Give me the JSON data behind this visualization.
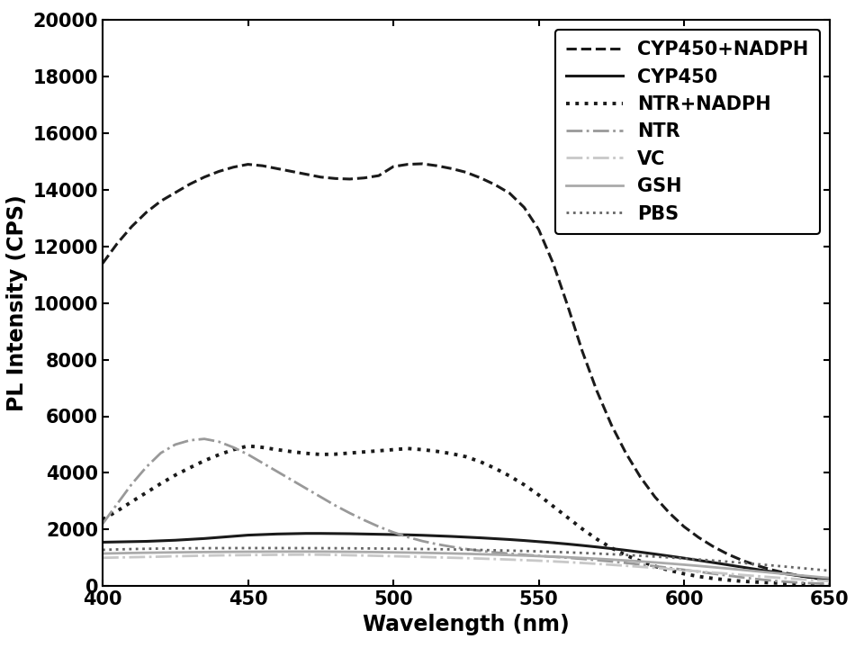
{
  "title": "",
  "xlabel": "Wavelength (nm)",
  "ylabel": "PL Intensity (CPS)",
  "xlim": [
    400,
    650
  ],
  "ylim": [
    0,
    20000
  ],
  "yticks": [
    0,
    2000,
    4000,
    6000,
    8000,
    10000,
    12000,
    14000,
    16000,
    18000,
    20000
  ],
  "xticks": [
    400,
    450,
    500,
    550,
    600,
    650
  ],
  "background_color": "#ffffff",
  "series": {
    "CYP450+NADPH": {
      "color": "#1a1a1a",
      "linestyle": "--",
      "linewidth": 2.2,
      "x": [
        400,
        405,
        410,
        415,
        420,
        425,
        430,
        435,
        440,
        445,
        450,
        455,
        460,
        465,
        470,
        475,
        480,
        485,
        490,
        495,
        500,
        505,
        510,
        515,
        520,
        525,
        530,
        535,
        540,
        545,
        550,
        555,
        560,
        565,
        570,
        575,
        580,
        585,
        590,
        595,
        600,
        605,
        610,
        615,
        620,
        625,
        630,
        635,
        640,
        645,
        650
      ],
      "y": [
        11400,
        12100,
        12700,
        13200,
        13600,
        13900,
        14200,
        14450,
        14650,
        14800,
        14900,
        14850,
        14750,
        14650,
        14550,
        14450,
        14400,
        14380,
        14420,
        14500,
        14820,
        14900,
        14920,
        14850,
        14750,
        14620,
        14420,
        14180,
        13880,
        13380,
        12600,
        11400,
        9900,
        8300,
        6900,
        5700,
        4700,
        3850,
        3150,
        2580,
        2100,
        1720,
        1400,
        1130,
        910,
        730,
        580,
        460,
        360,
        280,
        210
      ]
    },
    "CYP450": {
      "color": "#1a1a1a",
      "linestyle": "-",
      "linewidth": 2.2,
      "x": [
        400,
        405,
        410,
        415,
        420,
        425,
        430,
        435,
        440,
        445,
        450,
        455,
        460,
        465,
        470,
        475,
        480,
        485,
        490,
        495,
        500,
        505,
        510,
        515,
        520,
        525,
        530,
        535,
        540,
        545,
        550,
        555,
        560,
        565,
        570,
        575,
        580,
        585,
        590,
        595,
        600,
        605,
        610,
        615,
        620,
        625,
        630,
        635,
        640,
        645,
        650
      ],
      "y": [
        1550,
        1560,
        1570,
        1580,
        1600,
        1620,
        1650,
        1680,
        1720,
        1760,
        1800,
        1820,
        1840,
        1850,
        1860,
        1860,
        1855,
        1850,
        1840,
        1830,
        1820,
        1810,
        1795,
        1775,
        1755,
        1730,
        1705,
        1675,
        1645,
        1610,
        1570,
        1530,
        1485,
        1435,
        1382,
        1325,
        1265,
        1200,
        1132,
        1060,
        987,
        910,
        832,
        752,
        670,
        590,
        510,
        432,
        358,
        290,
        228
      ]
    },
    "NTR+NADPH": {
      "color": "#1a1a1a",
      "linestyle": ":",
      "linewidth": 2.8,
      "x": [
        400,
        405,
        410,
        415,
        420,
        425,
        430,
        435,
        440,
        445,
        450,
        455,
        460,
        465,
        470,
        475,
        480,
        485,
        490,
        495,
        500,
        505,
        510,
        515,
        520,
        525,
        530,
        535,
        540,
        545,
        550,
        555,
        560,
        565,
        570,
        575,
        580,
        585,
        590,
        595,
        600,
        605,
        610,
        615,
        620,
        625,
        630,
        635,
        640,
        645,
        650
      ],
      "y": [
        2350,
        2650,
        2980,
        3300,
        3620,
        3920,
        4180,
        4430,
        4640,
        4820,
        4950,
        4900,
        4820,
        4750,
        4690,
        4650,
        4660,
        4700,
        4740,
        4780,
        4820,
        4860,
        4820,
        4760,
        4680,
        4570,
        4390,
        4160,
        3890,
        3580,
        3220,
        2820,
        2420,
        2020,
        1660,
        1350,
        1090,
        880,
        700,
        555,
        435,
        340,
        270,
        215,
        170,
        140,
        115,
        95,
        78,
        64,
        53
      ]
    },
    "NTR": {
      "color": "#999999",
      "linestyle": "-.",
      "linewidth": 2.0,
      "x": [
        400,
        405,
        410,
        415,
        420,
        425,
        430,
        435,
        440,
        445,
        450,
        455,
        460,
        465,
        470,
        475,
        480,
        485,
        490,
        495,
        500,
        505,
        510,
        515,
        520,
        525,
        530,
        535,
        540,
        545,
        550,
        555,
        560,
        565,
        570,
        575,
        580,
        585,
        590,
        595,
        600,
        605,
        610,
        615,
        620,
        625,
        630,
        635,
        640,
        645,
        650
      ],
      "y": [
        2200,
        2900,
        3600,
        4200,
        4700,
        5000,
        5150,
        5200,
        5100,
        4900,
        4650,
        4350,
        4050,
        3750,
        3450,
        3150,
        2850,
        2580,
        2330,
        2100,
        1900,
        1730,
        1590,
        1480,
        1390,
        1310,
        1245,
        1190,
        1145,
        1105,
        1070,
        1035,
        1000,
        960,
        918,
        870,
        818,
        763,
        703,
        641,
        575,
        508,
        440,
        373,
        308,
        248,
        196,
        153,
        120,
        94,
        73
      ]
    },
    "VC": {
      "color": "#c8c8c8",
      "linestyle": "-.",
      "linewidth": 2.0,
      "x": [
        400,
        405,
        410,
        415,
        420,
        425,
        430,
        435,
        440,
        445,
        450,
        455,
        460,
        465,
        470,
        475,
        480,
        485,
        490,
        495,
        500,
        505,
        510,
        515,
        520,
        525,
        530,
        535,
        540,
        545,
        550,
        555,
        560,
        565,
        570,
        575,
        580,
        585,
        590,
        595,
        600,
        605,
        610,
        615,
        620,
        625,
        630,
        635,
        640,
        645,
        650
      ],
      "y": [
        1000,
        1010,
        1020,
        1030,
        1040,
        1055,
        1065,
        1075,
        1085,
        1090,
        1095,
        1100,
        1105,
        1108,
        1110,
        1108,
        1100,
        1090,
        1080,
        1068,
        1056,
        1044,
        1030,
        1016,
        1002,
        988,
        972,
        955,
        937,
        917,
        896,
        872,
        846,
        817,
        786,
        753,
        718,
        681,
        643,
        603,
        562,
        520,
        478,
        436,
        394,
        353,
        313,
        275,
        240,
        207,
        177
      ]
    },
    "GSH": {
      "color": "#aaaaaa",
      "linestyle": "-",
      "linewidth": 2.0,
      "x": [
        400,
        405,
        410,
        415,
        420,
        425,
        430,
        435,
        440,
        445,
        450,
        455,
        460,
        465,
        470,
        475,
        480,
        485,
        490,
        495,
        500,
        505,
        510,
        515,
        520,
        525,
        530,
        535,
        540,
        545,
        550,
        555,
        560,
        565,
        570,
        575,
        580,
        585,
        590,
        595,
        600,
        605,
        610,
        615,
        620,
        625,
        630,
        635,
        640,
        645,
        650
      ],
      "y": [
        1150,
        1160,
        1170,
        1178,
        1185,
        1192,
        1198,
        1202,
        1206,
        1210,
        1213,
        1215,
        1217,
        1218,
        1218,
        1217,
        1214,
        1210,
        1205,
        1199,
        1192,
        1184,
        1175,
        1165,
        1154,
        1141,
        1127,
        1112,
        1096,
        1079,
        1060,
        1040,
        1018,
        993,
        966,
        937,
        906,
        872,
        836,
        797,
        756,
        713,
        668,
        621,
        573,
        524,
        475,
        426,
        378,
        331,
        286
      ]
    },
    "PBS": {
      "color": "#666666",
      "linestyle": ":",
      "linewidth": 2.0,
      "x": [
        400,
        405,
        410,
        415,
        420,
        425,
        430,
        435,
        440,
        445,
        450,
        455,
        460,
        465,
        470,
        475,
        480,
        485,
        490,
        495,
        500,
        505,
        510,
        515,
        520,
        525,
        530,
        535,
        540,
        545,
        550,
        555,
        560,
        565,
        570,
        575,
        580,
        585,
        590,
        595,
        600,
        605,
        610,
        615,
        620,
        625,
        630,
        635,
        640,
        645,
        650
      ],
      "y": [
        1280,
        1295,
        1308,
        1318,
        1326,
        1332,
        1336,
        1339,
        1341,
        1342,
        1343,
        1343,
        1343,
        1342,
        1341,
        1340,
        1338,
        1335,
        1331,
        1327,
        1322,
        1316,
        1310,
        1303,
        1295,
        1286,
        1276,
        1265,
        1253,
        1240,
        1225,
        1209,
        1191,
        1171,
        1149,
        1126,
        1100,
        1072,
        1042,
        1010,
        976,
        940,
        902,
        862,
        820,
        777,
        732,
        686,
        639,
        591,
        543
      ]
    }
  },
  "legend_entries": [
    "CYP450+NADPH",
    "CYP450",
    "NTR+NADPH",
    "NTR",
    "VC",
    "GSH",
    "PBS"
  ],
  "font_size": 15,
  "label_fontsize": 17,
  "tick_fontsize": 15
}
